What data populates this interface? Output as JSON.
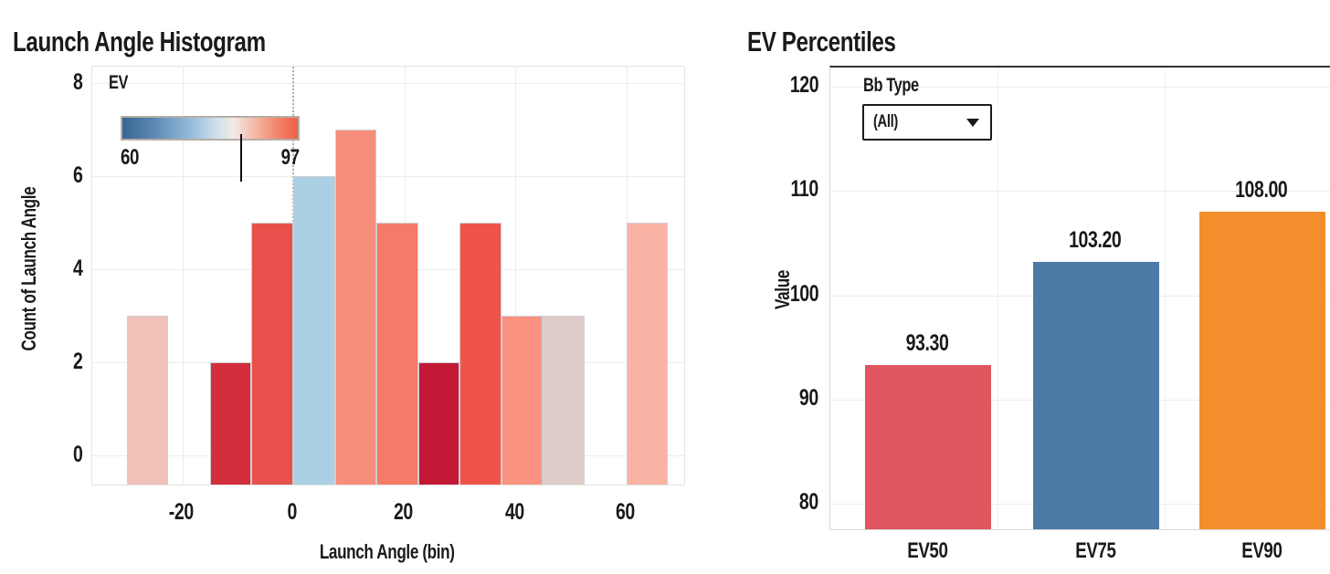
{
  "left_chart": {
    "title": "Launch Angle Histogram",
    "x_axis": {
      "label": "Launch Angle (bin)"
    },
    "y_axis": {
      "label": "Count of Launch Angle"
    },
    "legend": {
      "title": "EV",
      "min_label": "60",
      "max_label": "97",
      "min": 60,
      "max": 97,
      "marker_value": 85.5,
      "gradient_stops": [
        "#3a6694 0%",
        "#5c88b4 18%",
        "#93b9d8 38%",
        "#c9dcea 52%",
        "#f0ebe7 63%",
        "#f5bfae 74%",
        "#f28a70 87%",
        "#ee5f48 100%"
      ]
    }
  },
  "right_chart": {
    "title": "EV Percentiles",
    "filter": {
      "label": "Bb Type",
      "value": "(All)"
    },
    "y_axis": {
      "label": "Value"
    }
  },
  "chart_data": [
    {
      "type": "bar",
      "subtype": "histogram",
      "title": "Launch Angle Histogram",
      "xlabel": "Launch Angle (bin)",
      "ylabel": "Count of Launch Angle",
      "bin_width": 7.5,
      "xticks": [
        -20,
        0,
        20,
        40,
        60
      ],
      "yticks": [
        0,
        2,
        4,
        6,
        8
      ],
      "xlim": [
        -36,
        70.5
      ],
      "ylim": [
        -0.65,
        8.8
      ],
      "grid": true,
      "reference_line_x": 0,
      "color_field": "EV",
      "color_domain": [
        60,
        97
      ],
      "bars": [
        {
          "x0": -30,
          "x1": -22.5,
          "count": 3,
          "color": "#f0c1b7"
        },
        {
          "x0": -15,
          "x1": -7.5,
          "count": 2,
          "color": "#d32e3e"
        },
        {
          "x0": -7.5,
          "x1": 0,
          "count": 5,
          "color": "#e8504b"
        },
        {
          "x0": 0,
          "x1": 7.5,
          "count": 6,
          "color": "#abcfe3"
        },
        {
          "x0": 7.5,
          "x1": 15,
          "count": 7,
          "color": "#f78d7b"
        },
        {
          "x0": 15,
          "x1": 22.5,
          "count": 5,
          "color": "#f47b68"
        },
        {
          "x0": 22.5,
          "x1": 30,
          "count": 2,
          "color": "#c11936"
        },
        {
          "x0": 30,
          "x1": 37.5,
          "count": 5,
          "color": "#ee544a"
        },
        {
          "x0": 37.5,
          "x1": 45,
          "count": 3,
          "color": "#f9937f"
        },
        {
          "x0": 45,
          "x1": 52.5,
          "count": 3,
          "color": "#ddccc8"
        },
        {
          "x0": 60,
          "x1": 67.5,
          "count": 5,
          "color": "#f9b2a4"
        }
      ]
    },
    {
      "type": "bar",
      "title": "EV Percentiles",
      "categories": [
        "EV50",
        "EV75",
        "EV90"
      ],
      "values": [
        93.3,
        103.2,
        108.0
      ],
      "labels": [
        "93.30",
        "103.20",
        "108.00"
      ],
      "colors": [
        "#e0565e",
        "#4d79a7",
        "#f28e2b"
      ],
      "ylabel": "Value",
      "yticks": [
        80,
        90,
        100,
        110,
        120
      ],
      "ylim": [
        77.5,
        121.8
      ],
      "grid": true
    }
  ]
}
